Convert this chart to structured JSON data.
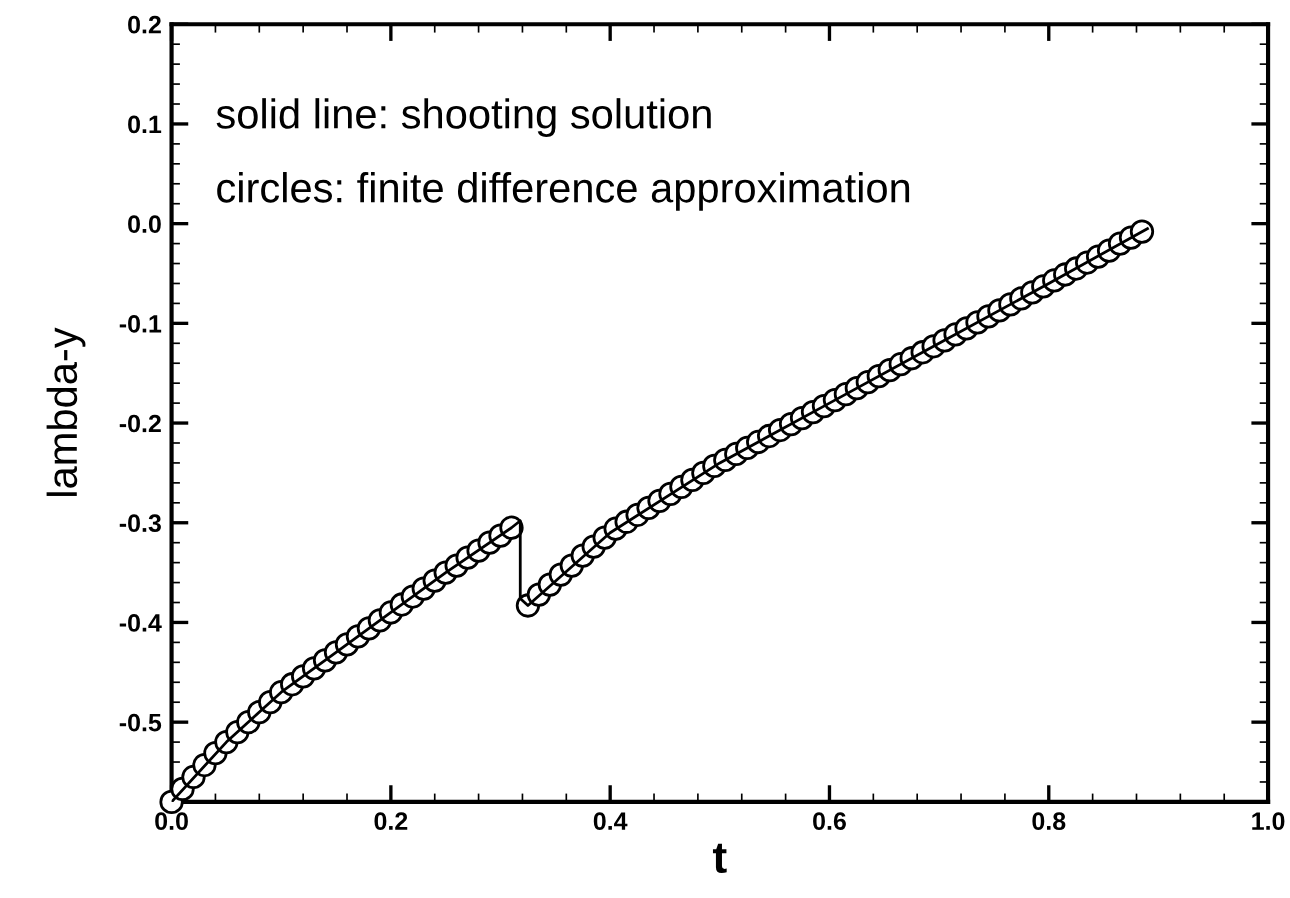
{
  "chart_data": {
    "type": "line",
    "xlabel": "t",
    "ylabel": "lambda-y",
    "annotations": [
      "solid line: shooting solution",
      "circles: finite difference approximation"
    ],
    "xlim": [
      0,
      1.0
    ],
    "ylim": [
      -0.58,
      0.2
    ],
    "xticks": [
      {
        "value": 0,
        "label": "0.0"
      },
      {
        "value": 0.2,
        "label": "0.2"
      },
      {
        "value": 0.4,
        "label": "0.4"
      },
      {
        "value": 0.6,
        "label": "0.6"
      },
      {
        "value": 0.8,
        "label": "0.8"
      },
      {
        "value": 1.0,
        "label": "1.0"
      }
    ],
    "yticks": [
      {
        "value": -0.5,
        "label": "-0.5"
      },
      {
        "value": -0.4,
        "label": "-0.4"
      },
      {
        "value": -0.3,
        "label": "-0.3"
      },
      {
        "value": -0.2,
        "label": "-0.2"
      },
      {
        "value": -0.1,
        "label": "-0.1"
      },
      {
        "value": 0,
        "label": "0.0"
      },
      {
        "value": 0.1,
        "label": "0.1"
      },
      {
        "value": 0.2,
        "label": "0.2"
      }
    ],
    "grid": false,
    "legend": false,
    "series": [
      {
        "color": "#000000",
        "marker": "none",
        "line_style": "solid",
        "x": [
          0,
          0.05,
          0.1,
          0.15,
          0.2,
          0.25,
          0.31,
          0.318,
          0.318,
          0.325,
          0.4,
          0.5,
          0.6,
          0.7,
          0.8,
          0.89
        ],
        "values": [
          -0.58,
          -0.52,
          -0.47,
          -0.43,
          -0.39,
          -0.35,
          -0.305,
          -0.298,
          -0.376,
          -0.383,
          -0.31,
          -0.24,
          -0.18,
          -0.12,
          -0.06,
          -0.005
        ]
      },
      {
        "type": "scatter",
        "color": "#000000",
        "marker": "circle",
        "x": [
          0,
          0.01,
          0.02,
          0.03,
          0.04,
          0.05,
          0.06,
          0.07,
          0.08,
          0.09,
          0.1,
          0.11,
          0.12,
          0.13,
          0.14,
          0.15,
          0.16,
          0.17,
          0.18,
          0.19,
          0.2,
          0.21,
          0.22,
          0.23,
          0.24,
          0.25,
          0.26,
          0.27,
          0.28,
          0.29,
          0.3,
          0.31,
          0.325,
          0.335,
          0.345,
          0.355,
          0.365,
          0.375,
          0.385,
          0.395,
          0.405,
          0.415,
          0.425,
          0.435,
          0.445,
          0.455,
          0.465,
          0.475,
          0.485,
          0.495,
          0.505,
          0.515,
          0.525,
          0.535,
          0.545,
          0.555,
          0.565,
          0.575,
          0.585,
          0.595,
          0.605,
          0.615,
          0.625,
          0.635,
          0.645,
          0.655,
          0.665,
          0.675,
          0.685,
          0.695,
          0.705,
          0.715,
          0.725,
          0.735,
          0.745,
          0.755,
          0.765,
          0.775,
          0.785,
          0.795,
          0.805,
          0.815,
          0.825,
          0.835,
          0.845,
          0.855,
          0.865,
          0.875,
          0.885
        ],
        "values": [
          -0.58,
          -0.567,
          -0.555,
          -0.543,
          -0.531,
          -0.52,
          -0.51,
          -0.5,
          -0.49,
          -0.48,
          -0.47,
          -0.462,
          -0.454,
          -0.446,
          -0.438,
          -0.43,
          -0.422,
          -0.414,
          -0.406,
          -0.398,
          -0.39,
          -0.382,
          -0.374,
          -0.366,
          -0.358,
          -0.35,
          -0.343,
          -0.335,
          -0.328,
          -0.32,
          -0.313,
          -0.305,
          -0.383,
          -0.372,
          -0.362,
          -0.352,
          -0.343,
          -0.333,
          -0.324,
          -0.315,
          -0.306,
          -0.299,
          -0.292,
          -0.285,
          -0.278,
          -0.271,
          -0.264,
          -0.257,
          -0.25,
          -0.243,
          -0.237,
          -0.231,
          -0.225,
          -0.219,
          -0.213,
          -0.207,
          -0.201,
          -0.195,
          -0.189,
          -0.183,
          -0.177,
          -0.171,
          -0.165,
          -0.159,
          -0.153,
          -0.147,
          -0.141,
          -0.135,
          -0.129,
          -0.123,
          -0.117,
          -0.111,
          -0.105,
          -0.099,
          -0.093,
          -0.087,
          -0.081,
          -0.075,
          -0.069,
          -0.063,
          -0.057,
          -0.051,
          -0.045,
          -0.039,
          -0.033,
          -0.027,
          -0.02,
          -0.014,
          -0.008
        ]
      }
    ]
  }
}
